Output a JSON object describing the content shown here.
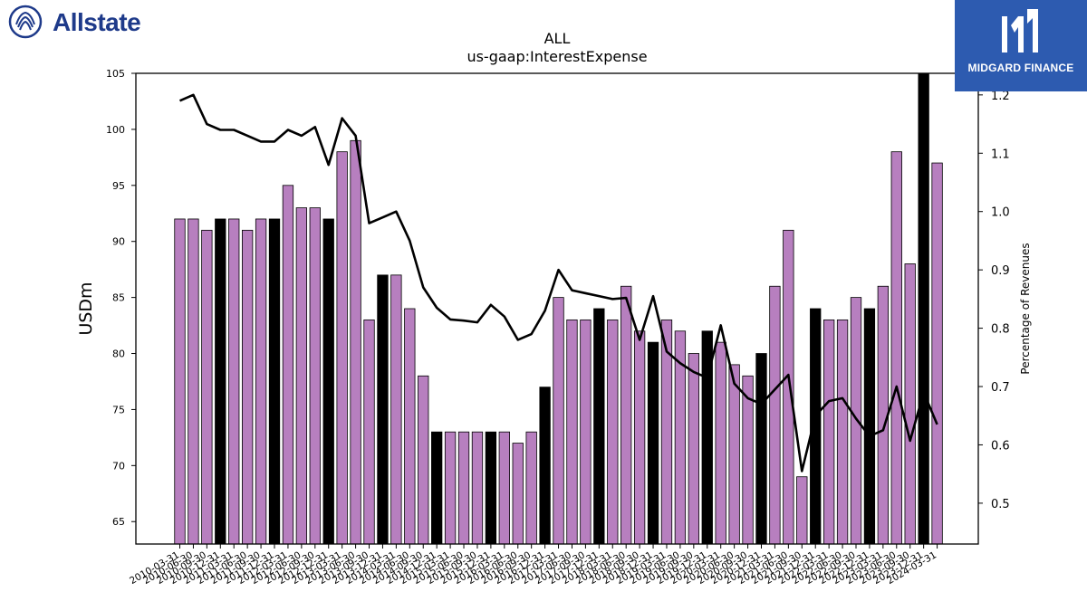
{
  "brand": {
    "left_logo_text": "Allstate",
    "right_logo_text": "MIDGARD FINANCE",
    "left_color": "#1e3a8a",
    "right_bg": "#2d5bb0"
  },
  "chart_data": {
    "type": "bar",
    "title": "ALL",
    "subtitle": "us-gaap:InterestExpense",
    "ylabel": "USDm",
    "y2label": "Percentage of Revenues",
    "ylim": [
      63,
      105
    ],
    "y2lim": [
      0.43,
      1.237
    ],
    "yticks": [
      65,
      70,
      75,
      80,
      85,
      90,
      95,
      100,
      105
    ],
    "y2ticks": [
      0.5,
      0.6,
      0.7,
      0.8,
      0.9,
      1.0,
      1.1,
      1.2
    ],
    "y2tick_labels": [
      "0.5",
      "0.6",
      "0.7",
      "0.8",
      "0.9",
      "1.0",
      "1.1",
      "1.2"
    ],
    "bar_color": "#b77fbf",
    "highlight_color": "#000000",
    "line_color": "#000000",
    "grid": false,
    "categories": [
      "2010-03-31",
      "2010-06-30",
      "2010-09-30",
      "2010-12-31",
      "2011-03-31",
      "2011-06-30",
      "2011-09-30",
      "2011-12-31",
      "2012-03-31",
      "2012-06-30",
      "2012-09-30",
      "2012-12-31",
      "2013-03-31",
      "2013-06-30",
      "2013-09-30",
      "2013-12-31",
      "2014-03-31",
      "2014-06-30",
      "2014-09-30",
      "2014-12-31",
      "2015-03-31",
      "2015-06-30",
      "2015-09-30",
      "2015-12-31",
      "2016-03-31",
      "2016-06-30",
      "2016-09-30",
      "2016-12-31",
      "2017-03-31",
      "2017-06-30",
      "2017-09-30",
      "2017-12-31",
      "2018-03-31",
      "2018-06-30",
      "2018-09-30",
      "2018-12-31",
      "2019-03-31",
      "2019-06-30",
      "2019-09-30",
      "2019-12-31",
      "2020-03-31",
      "2020-06-30",
      "2020-09-30",
      "2020-12-31",
      "2021-03-31",
      "2021-06-30",
      "2021-09-30",
      "2021-12-31",
      "2022-03-31",
      "2022-06-30",
      "2022-09-30",
      "2022-12-31",
      "2023-03-31",
      "2023-06-30",
      "2023-09-30",
      "2023-12-31",
      "2024-03-31"
    ],
    "series": [
      {
        "values": [
          92,
          92,
          91,
          92,
          92,
          91,
          92,
          92,
          95,
          93,
          93,
          92,
          98,
          99,
          83,
          87,
          87,
          84,
          78,
          73,
          73,
          73,
          73,
          73,
          73,
          72,
          73,
          77,
          85,
          83,
          83,
          84,
          83,
          86,
          82,
          81,
          83,
          82,
          80,
          82,
          81,
          79,
          78,
          80,
          86,
          91,
          69,
          84,
          83,
          83,
          85,
          84,
          86,
          98,
          88,
          105,
          97
        ],
        "highlight": [
          false,
          false,
          false,
          true,
          false,
          false,
          false,
          true,
          false,
          false,
          false,
          true,
          false,
          false,
          false,
          true,
          false,
          false,
          false,
          true,
          false,
          false,
          false,
          true,
          false,
          false,
          false,
          true,
          false,
          false,
          false,
          true,
          false,
          false,
          false,
          true,
          false,
          false,
          false,
          true,
          false,
          false,
          false,
          true,
          false,
          false,
          false,
          true,
          false,
          false,
          false,
          true,
          false,
          false,
          false,
          true,
          false
        ]
      },
      {
        "type": "line",
        "axis": "right",
        "values": [
          1.19,
          1.2,
          1.15,
          1.14,
          1.14,
          1.13,
          1.12,
          1.12,
          1.14,
          1.13,
          1.145,
          1.08,
          1.16,
          1.13,
          0.98,
          0.99,
          1.0,
          0.95,
          0.87,
          0.835,
          0.815,
          0.813,
          0.81,
          0.84,
          0.82,
          0.78,
          0.79,
          0.83,
          0.9,
          0.865,
          0.86,
          0.855,
          0.85,
          0.852,
          0.78,
          0.855,
          0.76,
          0.74,
          0.725,
          0.715,
          0.805,
          0.705,
          0.68,
          0.67,
          0.695,
          0.72,
          0.555,
          0.65,
          0.675,
          0.68,
          0.645,
          0.615,
          0.625,
          0.7,
          0.607,
          0.69,
          0.635
        ]
      }
    ]
  }
}
